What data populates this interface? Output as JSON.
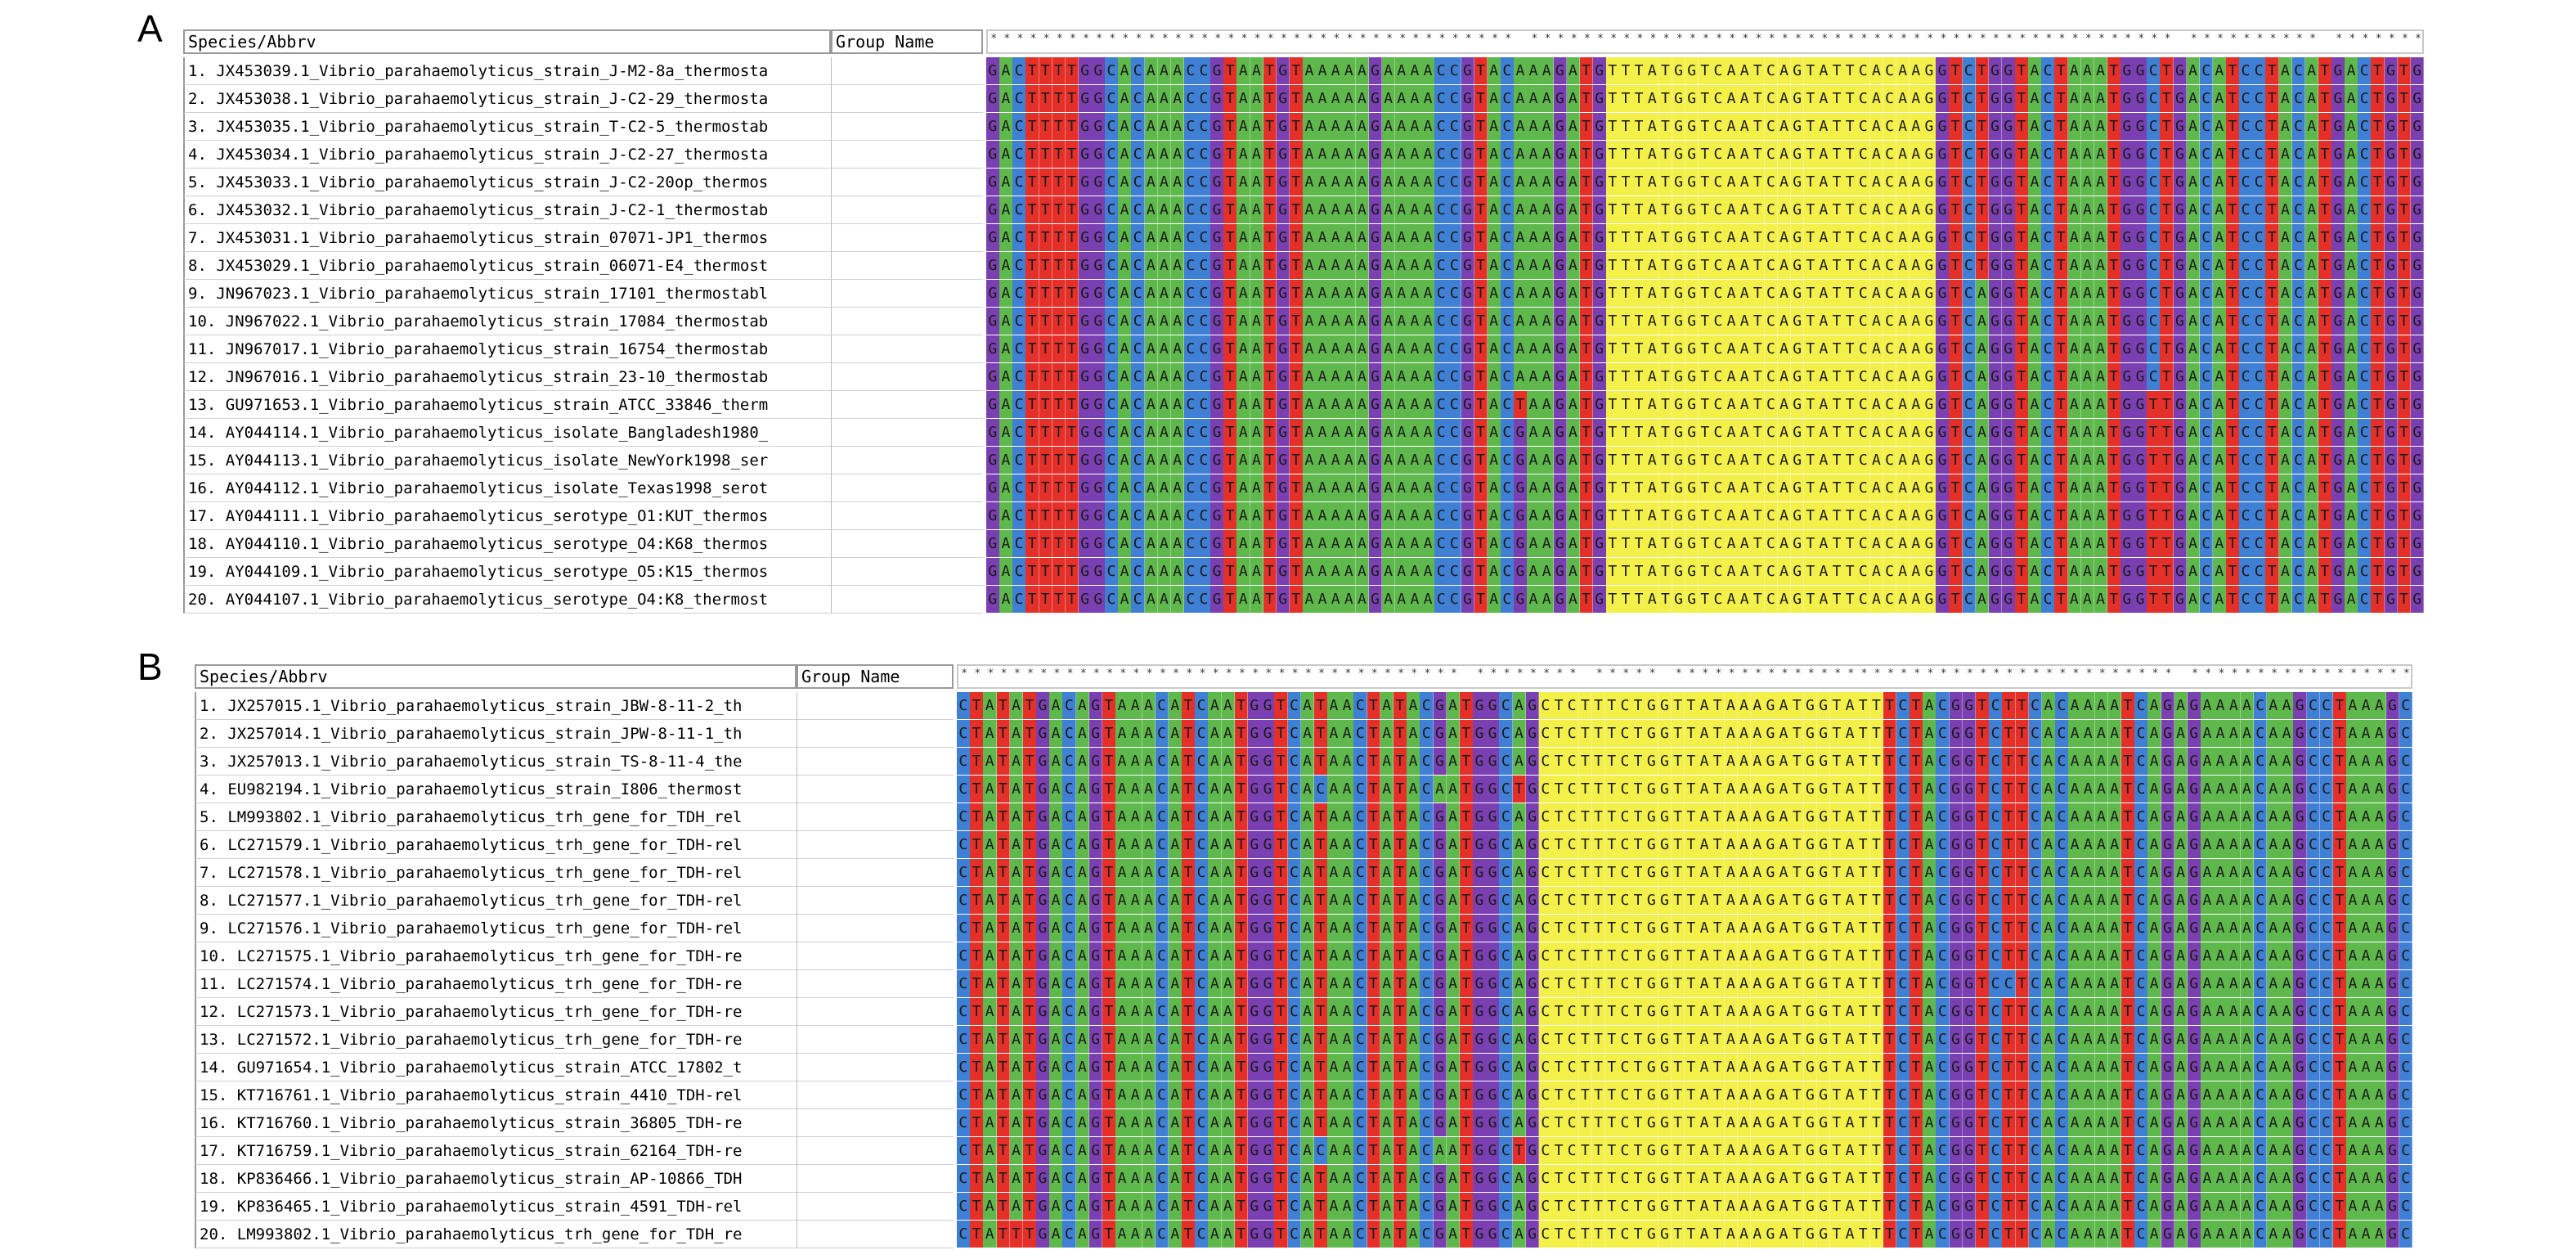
{
  "colors": {
    "A": "#5fb84c",
    "C": "#3f7fd4",
    "G": "#7a3fb0",
    "T": "#e5302a",
    "T_block": "#f3f04a",
    "consensus_mark": "*"
  },
  "panels": [
    {
      "letter": "A",
      "header": {
        "species": "Species/Abbrv",
        "group": "Group Name"
      },
      "consensus": "**************************************** ************************************************* ********** ************ *******************",
      "rows": [
        {
          "name": "1. JX453039.1_Vibrio_parahaemolyticus_strain_J-M2-8a_thermosta",
          "seq": "GACTTTTGGCACAAACCGTAATGTAAAAAGAAAACCGTACAAAGATGTTTATGGTCAATCAGTATTCACAAGGTCTGGTACTAAATGGCTGACATCCTACATGACTGTG"
        },
        {
          "name": "2. JX453038.1_Vibrio_parahaemolyticus_strain_J-C2-29_thermosta",
          "seq": "GACTTTTGGCACAAACCGTAATGTAAAAAGAAAACCGTACAAAGATGTTTATGGTCAATCAGTATTCACAAGGTCTGGTACTAAATGGCTGACATCCTACATGACTGTG"
        },
        {
          "name": "3. JX453035.1_Vibrio_parahaemolyticus_strain_T-C2-5_thermostab",
          "seq": "GACTTTTGGCACAAACCGTAATGTAAAAAGAAAACCGTACAAAGATGTTTATGGTCAATCAGTATTCACAAGGTCTGGTACTAAATGGCTGACATCCTACATGACTGTG"
        },
        {
          "name": "4. JX453034.1_Vibrio_parahaemolyticus_strain_J-C2-27_thermosta",
          "seq": "GACTTTTGGCACAAACCGTAATGTAAAAAGAAAACCGTACAAAGATGTTTATGGTCAATCAGTATTCACAAGGTCTGGTACTAAATGGCTGACATCCTACATGACTGTG"
        },
        {
          "name": "5. JX453033.1_Vibrio_parahaemolyticus_strain_J-C2-20op_thermos",
          "seq": "GACTTTTGGCACAAACCGTAATGTAAAAAGAAAACCGTACAAAGATGTTTATGGTCAATCAGTATTCACAAGGTCTGGTACTAAATGGCTGACATCCTACATGACTGTG"
        },
        {
          "name": "6. JX453032.1_Vibrio_parahaemolyticus_strain_J-C2-1_thermostab",
          "seq": "GACTTTTGGCACAAACCGTAATGTAAAAAGAAAACCGTACAAAGATGTTTATGGTCAATCAGTATTCACAAGGTCTGGTACTAAATGGCTGACATCCTACATGACTGTG"
        },
        {
          "name": "7. JX453031.1_Vibrio_parahaemolyticus_strain_07071-JP1_thermos",
          "seq": "GACTTTTGGCACAAACCGTAATGTAAAAAGAAAACCGTACAAAGATGTTTATGGTCAATCAGTATTCACAAGGTCTGGTACTAAATGGCTGACATCCTACATGACTGTG"
        },
        {
          "name": "8. JX453029.1_Vibrio_parahaemolyticus_strain_06071-E4_thermost",
          "seq": "GACTTTTGGCACAAACCGTAATGTAAAAAGAAAACCGTACAAAGATGTTTATGGTCAATCAGTATTCACAAGGTCTGGTACTAAATGGCTGACATCCTACATGACTGTG"
        },
        {
          "name": "9. JN967023.1_Vibrio_parahaemolyticus_strain_17101_thermostabl",
          "seq": "GACTTTTGGCACAAACCGTAATGTAAAAAGAAAACCGTACAAAGATGTTTATGGTCAATCAGTATTCACAAGGTCAGGTACTAAATGGCTGACATCCTACATGACTGTG"
        },
        {
          "name": "10. JN967022.1_Vibrio_parahaemolyticus_strain_17084_thermostab",
          "seq": "GACTTTTGGCACAAACCGTAATGTAAAAAGAAAACCGTACAAAGATGTTTATGGTCAATCAGTATTCACAAGGTCAGGTACTAAATGGCTGACATCCTACATGACTGTG"
        },
        {
          "name": "11. JN967017.1_Vibrio_parahaemolyticus_strain_16754_thermostab",
          "seq": "GACTTTTGGCACAAACCGTAATGTAAAAAGAAAACCGTACAAAGATGTTTATGGTCAATCAGTATTCACAAGGTCAGGTACTAAATGGCTGACATCCTACATGACTGTG"
        },
        {
          "name": "12. JN967016.1_Vibrio_parahaemolyticus_strain_23-10_thermostab",
          "seq": "GACTTTTGGCACAAACCGTAATGTAAAAAGAAAACCGTACAAAGATGTTTATGGTCAATCAGTATTCACAAGGTCAGGTACTAAATGGCTGACATCCTACATGACTGTG"
        },
        {
          "name": "13. GU971653.1_Vibrio_parahaemolyticus_strain_ATCC_33846_therm",
          "seq": "GACTTTTGGCACAAACCGTAATGTAAAAAGAAAACCGTACTAAGATGTTTATGGTCAATCAGTATTCACAAGGTCAGGTACTAAATGGTTGACATCCTACATGACTGTG"
        },
        {
          "name": "14. AY044114.1_Vibrio_parahaemolyticus_isolate_Bangladesh1980_",
          "seq": "GACTTTTGGCACAAACCGTAATGTAAAAAGAAAACCGTACGAAGATGTTTATGGTCAATCAGTATTCACAAGGTCAGGTACTAAATGGTTGACATCCTACATGACTGTG"
        },
        {
          "name": "15. AY044113.1_Vibrio_parahaemolyticus_isolate_NewYork1998_ser",
          "seq": "GACTTTTGGCACAAACCGTAATGTAAAAAGAAAACCGTACGAAGATGTTTATGGTCAATCAGTATTCACAAGGTCAGGTACTAAATGGTTGACATCCTACATGACTGTG"
        },
        {
          "name": "16. AY044112.1_Vibrio_parahaemolyticus_isolate_Texas1998_serot",
          "seq": "GACTTTTGGCACAAACCGTAATGTAAAAAGAAAACCGTACGAAGATGTTTATGGTCAATCAGTATTCACAAGGTCAGGTACTAAATGGTTGACATCCTACATGACTGTG"
        },
        {
          "name": "17. AY044111.1_Vibrio_parahaemolyticus_serotype_O1:KUT_thermos",
          "seq": "GACTTTTGGCACAAACCGTAATGTAAAAAGAAAACCGTACGAAGATGTTTATGGTCAATCAGTATTCACAAGGTCAGGTACTAAATGGTTGACATCCTACATGACTGTG"
        },
        {
          "name": "18. AY044110.1_Vibrio_parahaemolyticus_serotype_O4:K68_thermos",
          "seq": "GACTTTTGGCACAAACCGTAATGTAAAAAGAAAACCGTACGAAGATGTTTATGGTCAATCAGTATTCACAAGGTCAGGTACTAAATGGTTGACATCCTACATGACTGTG"
        },
        {
          "name": "19. AY044109.1_Vibrio_parahaemolyticus_serotype_O5:K15_thermos",
          "seq": "GACTTTTGGCACAAACCGTAATGTAAAAAGAAAACCGTACGAAGATGTTTATGGTCAATCAGTATTCACAAGGTCAGGTACTAAATGGTTGACATCCTACATGACTGTG"
        },
        {
          "name": "20. AY044107.1_Vibrio_parahaemolyticus_serotype_O4:K8_thermost",
          "seq": "GACTTTTGGCACAAACCGTAATGTAAAAAGAAAACCGTACGAAGATGTTTATGGTCAATCAGTATTCACAAGGTCAGGTACTAAATGGTTGACATCCTACATGACTGTG"
        }
      ]
    },
    {
      "letter": "B",
      "header": {
        "species": "Species/Abbrv",
        "group": "Group Name"
      },
      "consensus": "************************************** ******** ***** ************************************** ************************ *",
      "rows": [
        {
          "name": "1. JX257015.1_Vibrio_parahaemolyticus_strain_JBW-8-11-2_th",
          "seq": "CTATATGACAGTAAACATCAATGGTCATAACTATACGATGGCAGCTCTTTCTGGTTATAAAGATGGTATTTCTACGGTCTTCACAAAATCAGAGAAAACAAGCCTAAAGC"
        },
        {
          "name": "2. JX257014.1_Vibrio_parahaemolyticus_strain_JPW-8-11-1_th",
          "seq": "CTATATGACAGTAAACATCAATGGTCATAACTATACGATGGCAGCTCTTTCTGGTTATAAAGATGGTATTTCTACGGTCTTCACAAAATCAGAGAAAACAAGCCTAAAGC"
        },
        {
          "name": "3. JX257013.1_Vibrio_parahaemolyticus_strain_TS-8-11-4_the",
          "seq": "CTATATGACAGTAAACATCAATGGTCATAACTATACGATGGCAGCTCTTTCTGGTTATAAAGATGGTATTTCTACGGTCTTCACAAAATCAGAGAAAACAAGCCTAAAGC"
        },
        {
          "name": "4. EU982194.1_Vibrio_parahaemolyticus_strain_I806_thermost",
          "seq": "CTATATGACAGTAAACATCAATGGTCACAACTATACAATGGCTGCTCTTTCTGGTTATAAAGATGGTATTTCTACGGTCTTCACAAAATCAGAGAAAACAAGCCTAAAGC"
        },
        {
          "name": "5. LM993802.1_Vibrio_parahaemolyticus_trh_gene_for_TDH_rel",
          "seq": "CTATATGACAGTAAACATCAATGGTCATAACTATACGATGGCAGCTCTTTCTGGTTATAAAGATGGTATTTCTACGGTCTTCACAAAATCAGAGAAAACAAGCCTAAAGC"
        },
        {
          "name": "6. LC271579.1_Vibrio_parahaemolyticus_trh_gene_for_TDH-rel",
          "seq": "CTATATGACAGTAAACATCAATGGTCATAACTATACGATGGCAGCTCTTTCTGGTTATAAAGATGGTATTTCTACGGTCTTCACAAAATCAGAGAAAACAAGCCTAAAGC"
        },
        {
          "name": "7. LC271578.1_Vibrio_parahaemolyticus_trh_gene_for_TDH-rel",
          "seq": "CTATATGACAGTAAACATCAATGGTCATAACTATACGATGGCAGCTCTTTCTGGTTATAAAGATGGTATTTCTACGGTCTTCACAAAATCAGAGAAAACAAGCCTAAAGC"
        },
        {
          "name": "8. LC271577.1_Vibrio_parahaemolyticus_trh_gene_for_TDH-rel",
          "seq": "CTATATGACAGTAAACATCAATGGTCATAACTATACGATGGCAGCTCTTTCTGGTTATAAAGATGGTATTTCTACGGTCTTCACAAAATCAGAGAAAACAAGCCTAAAGC"
        },
        {
          "name": "9. LC271576.1_Vibrio_parahaemolyticus_trh_gene_for_TDH-rel",
          "seq": "CTATATGACAGTAAACATCAATGGTCATAACTATACGATGGCAGCTCTTTCTGGTTATAAAGATGGTATTTCTACGGTCTTCACAAAATCAGAGAAAACAAGCCTAAAGC"
        },
        {
          "name": "10. LC271575.1_Vibrio_parahaemolyticus_trh_gene_for_TDH-re",
          "seq": "CTATATGACAGTAAACATCAATGGTCATAACTATACGATGGCAGCTCTTTCTGGTTATAAAGATGGTATTTCTACGGTCTTCACAAAATCAGAGAAAACAAGCCTAAAGC"
        },
        {
          "name": "11. LC271574.1_Vibrio_parahaemolyticus_trh_gene_for_TDH-re",
          "seq": "CTATATGACAGTAAACATCAATGGTCATAACTATACGATGGCAGCTCTTTCTGGTTATAAAGATGGTATTTCTACGGTCCTCACAAAATCAGAGAAAACAAGCCTAAAGC"
        },
        {
          "name": "12. LC271573.1_Vibrio_parahaemolyticus_trh_gene_for_TDH-re",
          "seq": "CTATATGACAGTAAACATCAATGGTCATAACTATACGATGGCAGCTCTTTCTGGTTATAAAGATGGTATTTCTACGGTCTTCACAAAATCAGAGAAAACAAGCCTAAAGC"
        },
        {
          "name": "13. LC271572.1_Vibrio_parahaemolyticus_trh_gene_for_TDH-re",
          "seq": "CTATATGACAGTAAACATCAATGGTCATAACTATACGATGGCAGCTCTTTCTGGTTATAAAGATGGTATTTCTACGGTCTTCACAAAATCAGAGAAAACAAGCCTAAAGC"
        },
        {
          "name": "14. GU971654.1_Vibrio_parahaemolyticus_strain_ATCC_17802_t",
          "seq": "CTATATGACAGTAAACATCAATGGTCATAACTATACGATGGCAGCTCTTTCTGGTTATAAAGATGGTATTTCTACGGTCTTCACAAAATCAGAGAAAACAAGCCTAAAGC"
        },
        {
          "name": "15. KT716761.1_Vibrio_parahaemolyticus_strain_4410_TDH-rel",
          "seq": "CTATATGACAGTAAACATCAATGGTCATAACTATACGATGGCAGCTCTTTCTGGTTATAAAGATGGTATTTCTACGGTCTTCACAAAATCAGAGAAAACAAGCCTAAAGC"
        },
        {
          "name": "16. KT716760.1_Vibrio_parahaemolyticus_strain_36805_TDH-re",
          "seq": "CTATATGACAGTAAACATCAATGGTCATAACTATACGATGGCAGCTCTTTCTGGTTATAAAGATGGTATTTCTACGGTCTTCACAAAATCAGAGAAAACAAGCCTAAAGC"
        },
        {
          "name": "17. KT716759.1_Vibrio_parahaemolyticus_strain_62164_TDH-re",
          "seq": "CTATATGACAGTAAACATCAATGGTCACAACTATACAATGGCTGCTCTTTCTGGTTATAAAGATGGTATTTCTACGGTCTTCACAAAATCAGAGAAAACAAGCCTAAAGC"
        },
        {
          "name": "18. KP836466.1_Vibrio_parahaemolyticus_strain_AP-10866_TDH",
          "seq": "CTATATGACAGTAAACATCAATGGTCATAACTATACGATGGCAGCTCTTTCTGGTTATAAAGATGGTATTTCTACGGTCTTCACAAAATCAGAGAAAACAAGCCTAAAGC"
        },
        {
          "name": "19. KP836465.1_Vibrio_parahaemolyticus_strain_4591_TDH-rel",
          "seq": "CTATATGACAGTAAACATCAATGGTCATAACTATACGATGGCAGCTCTTTCTGGTTATAAAGATGGTATTTCTACGGTCTTCACAAAATCAGAGAAAACAAGCCTAAAGC"
        },
        {
          "name": "20. LM993802.1_Vibrio_parahaemolyticus_trh_gene_for_TDH_re",
          "seq": "CTATTTGACAGTAAACATCAATGGTCATAACTATACGATGGCAGCTCTTTCTGGTTATAAAGATGGTATTTCTACGGTCTTCACAAAATCAGAGAAAACAAGCCTAAAGC"
        }
      ]
    }
  ]
}
